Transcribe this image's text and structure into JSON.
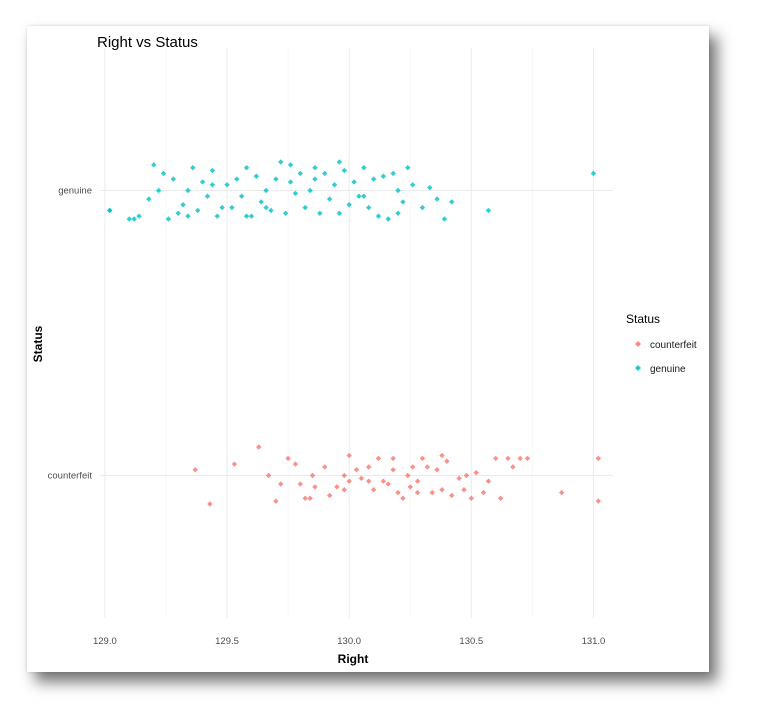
{
  "chart_data": {
    "type": "scatter",
    "title": "Right vs Status",
    "xlabel": "Right",
    "ylabel": "Status",
    "xlim": [
      128.98,
      131.08
    ],
    "x_ticks": [
      "129.0",
      "129.5",
      "130.0",
      "130.5",
      "131.0"
    ],
    "x_tick_values": [
      129.0,
      129.5,
      130.0,
      130.5,
      131.0
    ],
    "categories": [
      "counterfeit",
      "genuine"
    ],
    "grid": true,
    "legend": {
      "title": "Status",
      "position": "right"
    },
    "series": [
      {
        "name": "counterfeit",
        "color": "#F8766D",
        "points": [
          [
            129.43,
            -0.1
          ],
          [
            129.37,
            0.02
          ],
          [
            129.53,
            0.04
          ],
          [
            129.63,
            0.1
          ],
          [
            129.67,
            0.0
          ],
          [
            129.7,
            -0.09
          ],
          [
            129.72,
            -0.03
          ],
          [
            129.75,
            0.06
          ],
          [
            129.78,
            0.04
          ],
          [
            129.8,
            -0.03
          ],
          [
            129.82,
            -0.08
          ],
          [
            129.84,
            -0.08
          ],
          [
            129.85,
            0.0
          ],
          [
            129.86,
            -0.04
          ],
          [
            129.9,
            0.03
          ],
          [
            129.92,
            -0.07
          ],
          [
            129.95,
            -0.04
          ],
          [
            129.98,
            -0.05
          ],
          [
            130.0,
            -0.02
          ],
          [
            130.0,
            0.07
          ],
          [
            130.03,
            0.02
          ],
          [
            130.05,
            -0.01
          ],
          [
            130.08,
            0.03
          ],
          [
            130.1,
            -0.05
          ],
          [
            130.12,
            0.06
          ],
          [
            130.14,
            -0.02
          ],
          [
            130.16,
            -0.03
          ],
          [
            130.18,
            0.02
          ],
          [
            130.2,
            -0.06
          ],
          [
            130.22,
            -0.08
          ],
          [
            130.24,
            0.0
          ],
          [
            130.25,
            -0.04
          ],
          [
            130.26,
            0.03
          ],
          [
            130.28,
            -0.02
          ],
          [
            130.3,
            0.06
          ],
          [
            130.32,
            0.03
          ],
          [
            130.34,
            -0.06
          ],
          [
            130.36,
            0.02
          ],
          [
            130.38,
            -0.05
          ],
          [
            130.4,
            0.05
          ],
          [
            130.42,
            -0.07
          ],
          [
            130.45,
            -0.01
          ],
          [
            130.47,
            -0.05
          ],
          [
            130.5,
            -0.08
          ],
          [
            130.52,
            0.01
          ],
          [
            130.55,
            -0.06
          ],
          [
            130.57,
            -0.02
          ],
          [
            130.6,
            0.06
          ],
          [
            130.62,
            -0.08
          ],
          [
            130.65,
            0.06
          ],
          [
            130.67,
            0.03
          ],
          [
            130.7,
            0.06
          ],
          [
            130.73,
            0.06
          ],
          [
            130.87,
            -0.06
          ],
          [
            131.02,
            -0.09
          ],
          [
            131.02,
            0.06
          ],
          [
            129.98,
            0.0
          ],
          [
            130.08,
            -0.02
          ],
          [
            130.18,
            0.06
          ],
          [
            130.28,
            -0.06
          ],
          [
            130.38,
            0.07
          ],
          [
            130.48,
            0.0
          ]
        ]
      },
      {
        "name": "genuine",
        "color": "#00BFC4",
        "points": [
          [
            129.02,
            -0.07
          ],
          [
            129.02,
            -0.07
          ],
          [
            129.1,
            -0.1
          ],
          [
            129.14,
            -0.09
          ],
          [
            129.18,
            -0.03
          ],
          [
            129.2,
            0.09
          ],
          [
            129.22,
            0.0
          ],
          [
            129.24,
            0.06
          ],
          [
            129.26,
            -0.1
          ],
          [
            129.28,
            0.04
          ],
          [
            129.3,
            -0.08
          ],
          [
            129.32,
            -0.05
          ],
          [
            129.34,
            0.0
          ],
          [
            129.36,
            0.08
          ],
          [
            129.38,
            -0.07
          ],
          [
            129.4,
            0.03
          ],
          [
            129.42,
            -0.02
          ],
          [
            129.44,
            0.07
          ],
          [
            129.46,
            -0.09
          ],
          [
            129.48,
            -0.06
          ],
          [
            129.5,
            0.02
          ],
          [
            129.52,
            -0.06
          ],
          [
            129.54,
            0.04
          ],
          [
            129.56,
            -0.02
          ],
          [
            129.58,
            0.08
          ],
          [
            129.6,
            -0.09
          ],
          [
            129.62,
            0.05
          ],
          [
            129.64,
            -0.04
          ],
          [
            129.66,
            0.0
          ],
          [
            129.68,
            -0.07
          ],
          [
            129.7,
            0.04
          ],
          [
            129.72,
            0.1
          ],
          [
            129.74,
            -0.08
          ],
          [
            129.76,
            0.03
          ],
          [
            129.78,
            -0.01
          ],
          [
            129.8,
            0.06
          ],
          [
            129.82,
            -0.06
          ],
          [
            129.84,
            0.0
          ],
          [
            129.86,
            0.04
          ],
          [
            129.88,
            -0.08
          ],
          [
            129.9,
            0.06
          ],
          [
            129.92,
            -0.03
          ],
          [
            129.94,
            0.02
          ],
          [
            129.96,
            -0.08
          ],
          [
            129.98,
            0.07
          ],
          [
            130.0,
            -0.05
          ],
          [
            130.02,
            0.03
          ],
          [
            130.04,
            -0.02
          ],
          [
            130.06,
            0.08
          ],
          [
            130.08,
            -0.06
          ],
          [
            130.1,
            0.04
          ],
          [
            130.12,
            -0.09
          ],
          [
            130.14,
            0.05
          ],
          [
            130.16,
            -0.1
          ],
          [
            130.18,
            0.06
          ],
          [
            130.2,
            0.0
          ],
          [
            130.22,
            -0.04
          ],
          [
            130.24,
            0.08
          ],
          [
            130.26,
            0.02
          ],
          [
            130.3,
            -0.06
          ],
          [
            130.33,
            0.01
          ],
          [
            130.36,
            -0.03
          ],
          [
            130.39,
            -0.1
          ],
          [
            130.42,
            -0.04
          ],
          [
            130.57,
            -0.07
          ],
          [
            131.0,
            0.06
          ],
          [
            129.12,
            -0.1
          ],
          [
            129.34,
            -0.09
          ],
          [
            129.44,
            0.02
          ],
          [
            129.58,
            -0.09
          ],
          [
            129.66,
            -0.06
          ],
          [
            129.76,
            0.09
          ],
          [
            129.86,
            0.08
          ],
          [
            129.96,
            0.1
          ],
          [
            130.06,
            -0.02
          ],
          [
            130.2,
            -0.08
          ]
        ]
      }
    ]
  }
}
